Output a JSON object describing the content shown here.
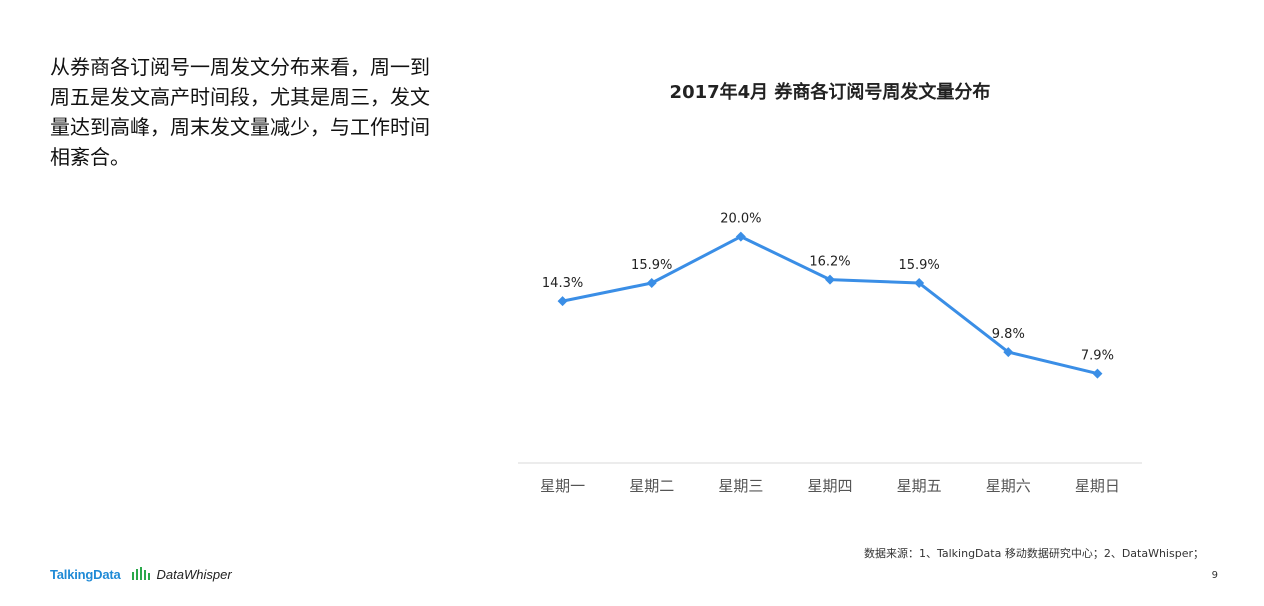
{
  "intro": {
    "text": "从券商各订阅号一周发文分布来看，周一到周五是发文高产时间段，尤其是周三，发文量达到高峰，周末发文量减少，与工作时间相紊合。"
  },
  "footer": {
    "source": "数据来源：1、TalkingData 移动数据研究中心；2、DataWhisper；",
    "page_number": "9",
    "logos": {
      "talkingdata": "TalkingData",
      "datawhisper": "DataWhisper"
    }
  },
  "colors": {
    "series_line": "#3a8ee6",
    "axis_line": "#d9d9d9",
    "tick_label": "#555555",
    "data_label": "#222222",
    "brand_talkingdata": "#1f8ad6"
  },
  "chart_data": {
    "type": "line",
    "title": "2017年4月 券商各订阅号周发文量分布",
    "categories": [
      "星期一",
      "星期二",
      "星期三",
      "星期四",
      "星期五",
      "星期六",
      "星期日"
    ],
    "series": [
      {
        "values": [
          14.3,
          15.9,
          20.0,
          16.2,
          15.9,
          9.8,
          7.9
        ],
        "labels": [
          "14.3%",
          "15.9%",
          "20.0%",
          "16.2%",
          "15.9%",
          "9.8%",
          "7.9%"
        ]
      }
    ],
    "y_unit": "%",
    "ylim": [
      0,
      25
    ],
    "marker": "diamond",
    "grid": false,
    "legend": "none"
  }
}
